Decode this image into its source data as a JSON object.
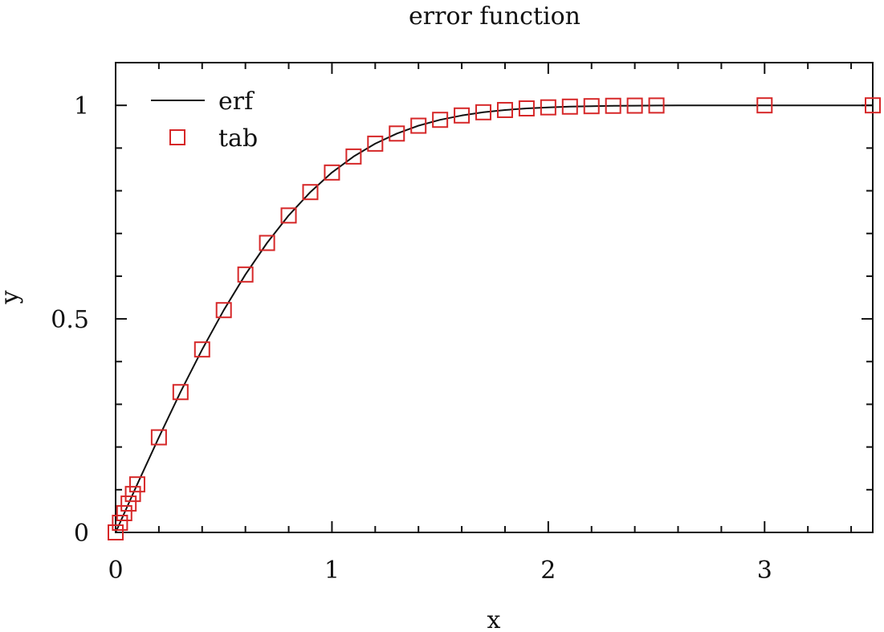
{
  "chart_data": {
    "type": "line",
    "title": "error function",
    "xlabel": "x",
    "ylabel": "y",
    "xlim": [
      0,
      3.5
    ],
    "ylim": [
      0,
      1.1
    ],
    "xticks": [
      {
        "value": 0,
        "label": "0"
      },
      {
        "value": 1,
        "label": "1"
      },
      {
        "value": 2,
        "label": "2"
      },
      {
        "value": 3,
        "label": "3"
      }
    ],
    "yticks": [
      {
        "value": 0,
        "label": "0"
      },
      {
        "value": 0.5,
        "label": "0.5"
      },
      {
        "value": 1,
        "label": "1"
      }
    ],
    "x_minor_ticks": [
      0.2,
      0.4,
      0.6,
      0.8,
      1.2,
      1.4,
      1.6,
      1.8,
      2.2,
      2.4,
      2.6,
      2.8,
      3.2,
      3.4
    ],
    "y_minor_ticks": [
      0.1,
      0.2,
      0.3,
      0.4,
      0.6,
      0.7,
      0.8,
      0.9
    ],
    "grid": false,
    "legend_position": "top-left",
    "series": [
      {
        "name": "erf",
        "kind": "line",
        "color": "#111111",
        "x": [
          0,
          0.02,
          0.05,
          0.1,
          0.2,
          0.3,
          0.4,
          0.5,
          0.6,
          0.7,
          0.8,
          0.9,
          1.0,
          1.1,
          1.2,
          1.3,
          1.4,
          1.5,
          1.6,
          1.7,
          1.8,
          1.9,
          2.0,
          2.1,
          2.2,
          2.3,
          2.4,
          2.5,
          2.6,
          2.7,
          2.8,
          2.9,
          3.0,
          3.1,
          3.2,
          3.3,
          3.4,
          3.5
        ],
        "y": [
          0.0,
          0.0226,
          0.0564,
          0.1125,
          0.2227,
          0.3286,
          0.4284,
          0.5205,
          0.6039,
          0.6778,
          0.7421,
          0.7969,
          0.8427,
          0.8802,
          0.9103,
          0.934,
          0.9523,
          0.9661,
          0.9763,
          0.9838,
          0.9891,
          0.9928,
          0.9953,
          0.997,
          0.9981,
          0.9989,
          0.9993,
          0.9996,
          0.9998,
          0.9999,
          0.9999,
          1.0,
          1.0,
          1.0,
          1.0,
          1.0,
          1.0,
          1.0
        ]
      },
      {
        "name": "tab",
        "kind": "markers",
        "marker": "square",
        "color": "#d62728",
        "x": [
          0,
          0.02,
          0.04,
          0.06,
          0.08,
          0.1,
          0.2,
          0.3,
          0.4,
          0.5,
          0.6,
          0.7,
          0.8,
          0.9,
          1.0,
          1.1,
          1.2,
          1.3,
          1.4,
          1.5,
          1.6,
          1.7,
          1.8,
          1.9,
          2.0,
          2.1,
          2.2,
          2.3,
          2.4,
          2.5,
          3.0,
          3.5
        ],
        "y": [
          0.0,
          0.0226,
          0.0451,
          0.0676,
          0.09,
          0.1125,
          0.2227,
          0.3286,
          0.4284,
          0.5205,
          0.6039,
          0.6778,
          0.7421,
          0.7969,
          0.8427,
          0.8802,
          0.9103,
          0.934,
          0.9523,
          0.9661,
          0.9763,
          0.9838,
          0.9891,
          0.9928,
          0.9953,
          0.997,
          0.9981,
          0.9989,
          0.9993,
          0.9996,
          1.0,
          1.0
        ]
      }
    ]
  }
}
